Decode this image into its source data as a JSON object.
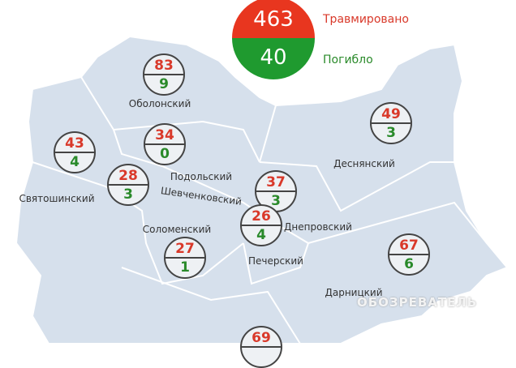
{
  "legend": {
    "injured_total": "463",
    "injured_label": "Травмировано",
    "killed_total": "40",
    "killed_label": "Погибло",
    "injured_color": "#e8361f",
    "killed_color": "#1f9a2f"
  },
  "districts": [
    {
      "name": "Оболонский",
      "injured": "83",
      "killed": "9"
    },
    {
      "name": "Подольский",
      "injured": "34",
      "killed": "0"
    },
    {
      "name": "Святошинский",
      "injured": "43",
      "killed": "4"
    },
    {
      "name": "Шевченковский",
      "injured": "28",
      "killed": "3"
    },
    {
      "name": "Днепровский",
      "injured": "37",
      "killed": "3"
    },
    {
      "name": "Печерский",
      "injured": "26",
      "killed": "4"
    },
    {
      "name": "Соломенский",
      "injured": "27",
      "killed": "1"
    },
    {
      "name": "Деснянский",
      "injured": "49",
      "killed": "3"
    },
    {
      "name": "Дарницкий",
      "injured": "67",
      "killed": "6"
    },
    {
      "name": "",
      "injured": "69",
      "killed": ""
    }
  ],
  "watermark": "ОБОЗРЕВАТЕЛЬ"
}
